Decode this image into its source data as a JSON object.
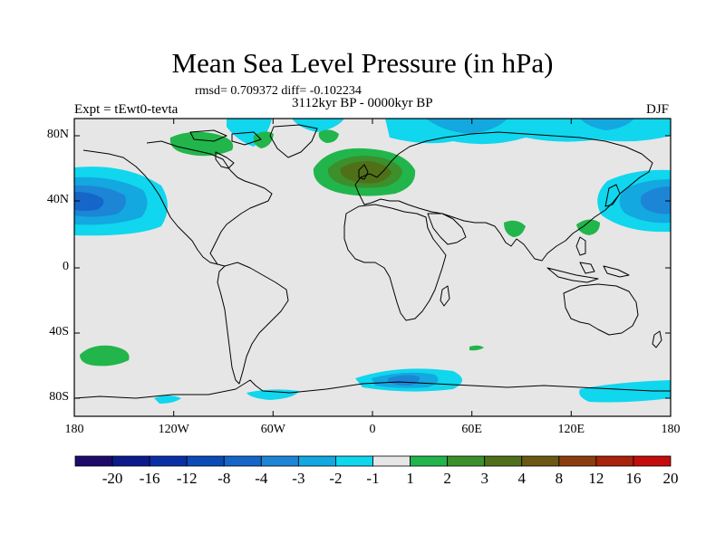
{
  "title": "Mean Sea Level Pressure (in hPa)",
  "stats": "rmsd= 0.709372 diff= -0.102234",
  "period": "3112kyr BP - 0000kyr BP",
  "experiment": "Expt = tEwt0-tevta",
  "season": "DJF",
  "lat_ticks": [
    "80N",
    "40N",
    "0",
    "40S",
    "80S"
  ],
  "lon_ticks": [
    "180",
    "120W",
    "60W",
    "0",
    "60E",
    "120E",
    "180"
  ],
  "colorbar": {
    "labels": [
      "-20",
      "-16",
      "-12",
      "-8",
      "-4",
      "-3",
      "-2",
      "-1",
      "1",
      "2",
      "3",
      "4",
      "8",
      "12",
      "16",
      "20"
    ],
    "colors": [
      "#1d0a6b",
      "#0c1a8c",
      "#0a2ea6",
      "#0b4bb8",
      "#1566c8",
      "#1d85d6",
      "#13a8e0",
      "#10d6ee",
      "#e6e6e6",
      "#22b54b",
      "#3c8f2a",
      "#4f7018",
      "#6b5812",
      "#8a3d0e",
      "#a8220c",
      "#c40d0c"
    ]
  },
  "map_colors": {
    "background": "#e6e6e6",
    "coast": "#000000"
  }
}
